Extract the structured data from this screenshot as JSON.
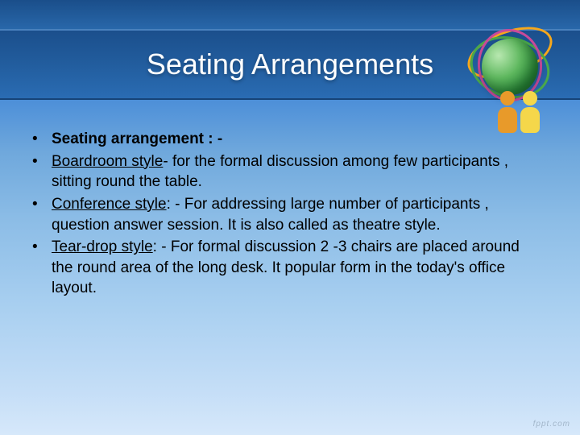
{
  "title": "Seating Arrangements",
  "bullets": [
    {
      "label": "Seating arrangement",
      "label_suffix": " : -",
      "rest": "",
      "label_bold": true,
      "label_underline": false
    },
    {
      "label": "Boardroom style",
      "label_suffix": "-",
      "rest": "  for the  formal discussion among few participants ,  sitting round the table.",
      "label_bold": false,
      "label_underline": true
    },
    {
      "label": "Conference style",
      "label_suffix": ": -",
      "rest": "  For addressing large number of participants , question answer session. It is also called as theatre  style.",
      "label_bold": false,
      "label_underline": true
    },
    {
      "label": "Tear-drop style",
      "label_suffix": ": -",
      "rest": " For formal discussion  2 -3 chairs are placed around the round area of the long desk.  It popular form in the today's office layout.",
      "label_bold": false,
      "label_underline": true
    }
  ],
  "decoration": {
    "orbit_colors": [
      "#f7a81b",
      "#4aa84a",
      "#c94a9a"
    ],
    "figure_colors": [
      "#e89a2a",
      "#f5d74a"
    ]
  },
  "watermark": "fppt.com",
  "style": {
    "title_color": "#ffffff",
    "title_fontsize": 36,
    "body_color": "#000000",
    "body_fontsize": 19,
    "slide_width": 720,
    "slide_height": 540
  }
}
